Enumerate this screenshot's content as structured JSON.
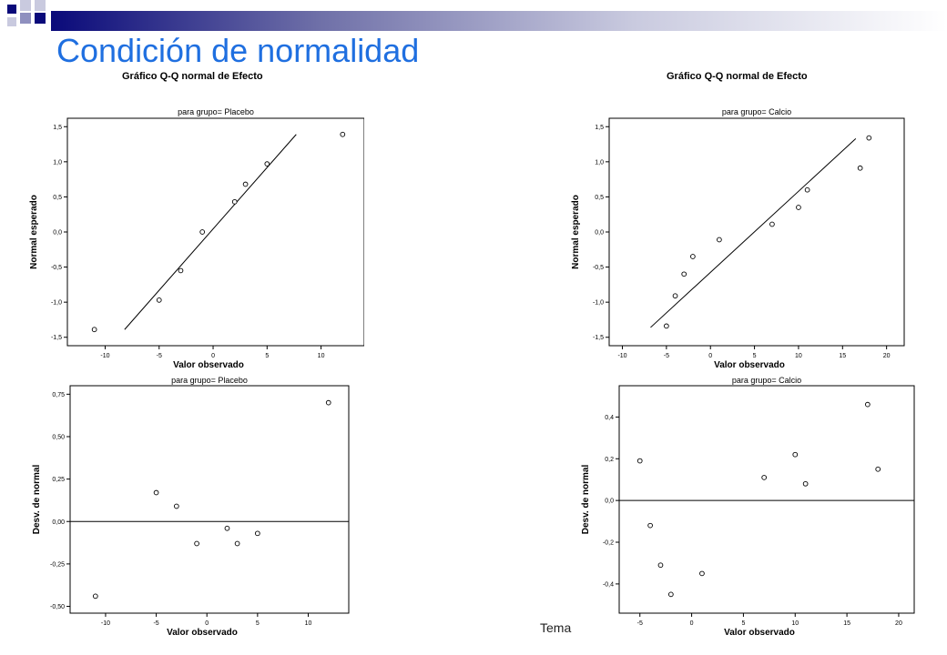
{
  "slide": {
    "title": "Condición de normalidad",
    "footer": "Tema",
    "accent_colors": {
      "title": "#1f6fe0",
      "band_dark": "#0a0a7a",
      "band_light": "#c9cadf"
    }
  },
  "chart_data": [
    {
      "id": "qq-placebo",
      "type": "scatter",
      "heading": "Gráfico Q-Q normal de Efecto",
      "title": "para grupo= Placebo",
      "xlabel": "Valor observado",
      "ylabel": "Normal esperado",
      "xlim": [
        -13.5,
        14
      ],
      "ylim": [
        -1.62,
        1.62
      ],
      "xticks": [
        -10,
        -5,
        0,
        5,
        10
      ],
      "yticks": [
        -1.5,
        -1.0,
        -0.5,
        0.0,
        0.5,
        1.0,
        1.5
      ],
      "ytick_labels": [
        "-1,5",
        "-1,0",
        "-0,5",
        "0,0",
        "0,5",
        "1,0",
        "1,5"
      ],
      "x": [
        -11,
        -5,
        -3,
        -1,
        2,
        3,
        5,
        12
      ],
      "y": [
        -1.39,
        -0.97,
        -0.55,
        0.0,
        0.43,
        0.68,
        0.97,
        1.39
      ],
      "reference_line": [
        [
          -8.2,
          -1.39
        ],
        [
          7.7,
          1.39
        ]
      ],
      "grid": false,
      "legend": "none"
    },
    {
      "id": "qq-calcio",
      "type": "scatter",
      "heading": "Gráfico Q-Q normal de Efecto",
      "title": "para grupo= Calcio",
      "xlabel": "Valor observado",
      "ylabel": "Normal esperado",
      "xlim": [
        -11.5,
        22
      ],
      "ylim": [
        -1.62,
        1.62
      ],
      "xticks": [
        -10,
        -5,
        0,
        5,
        10,
        15,
        20
      ],
      "yticks": [
        -1.5,
        -1.0,
        -0.5,
        0.0,
        0.5,
        1.0,
        1.5
      ],
      "ytick_labels": [
        "-1,5",
        "-1,0",
        "-0,5",
        "0,0",
        "0,5",
        "1,0",
        "1,5"
      ],
      "x": [
        -5,
        -4,
        -3,
        -2,
        1,
        7,
        10,
        11,
        17,
        18
      ],
      "y": [
        -1.34,
        -0.91,
        -0.6,
        -0.35,
        -0.11,
        0.11,
        0.35,
        0.6,
        0.91,
        1.34
      ],
      "reference_line": [
        [
          -6.8,
          -1.36
        ],
        [
          16.5,
          1.33
        ]
      ],
      "grid": false,
      "legend": "none"
    },
    {
      "id": "detrended-placebo",
      "type": "scatter",
      "title": "para grupo= Placebo",
      "xlabel": "Valor observado",
      "ylabel": "Desv. de normal",
      "xlim": [
        -13.5,
        14
      ],
      "ylim": [
        -0.54,
        0.8
      ],
      "xticks": [
        -10,
        -5,
        0,
        5,
        10
      ],
      "yticks": [
        -0.5,
        -0.25,
        0.0,
        0.25,
        0.5,
        0.75
      ],
      "ytick_labels": [
        "-0,50",
        "-0,25",
        "0,00",
        "0,25",
        "0,50",
        "0,75"
      ],
      "x": [
        -11,
        -5,
        -3,
        -1,
        2,
        3,
        5,
        12
      ],
      "y": [
        -0.44,
        0.17,
        0.09,
        -0.13,
        -0.04,
        -0.13,
        -0.07,
        0.7
      ],
      "reference_line": [
        [
          -13.5,
          0.0
        ],
        [
          14,
          0.0
        ]
      ],
      "grid": false,
      "legend": "none"
    },
    {
      "id": "detrended-calcio",
      "type": "scatter",
      "title": "para grupo= Calcio",
      "xlabel": "Valor observado",
      "ylabel": "Desv. de normal",
      "xlim": [
        -7,
        21.5
      ],
      "ylim": [
        -0.54,
        0.55
      ],
      "xticks": [
        -5,
        0,
        5,
        10,
        15,
        20
      ],
      "yticks": [
        -0.4,
        -0.2,
        0.0,
        0.2,
        0.4
      ],
      "ytick_labels": [
        "-0,4",
        "-0,2",
        "0,0",
        "0,2",
        "0,4"
      ],
      "x": [
        -5,
        -4,
        -3,
        -2,
        1,
        7,
        10,
        11,
        17,
        18
      ],
      "y": [
        0.19,
        -0.12,
        -0.31,
        -0.45,
        -0.35,
        0.11,
        0.22,
        0.08,
        0.46,
        0.15
      ],
      "reference_line": [
        [
          -7,
          0.0
        ],
        [
          21.5,
          0.0
        ]
      ],
      "grid": false,
      "legend": "none"
    }
  ]
}
